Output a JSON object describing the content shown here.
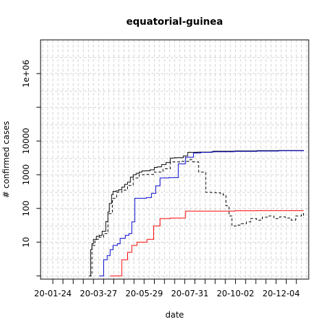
{
  "chart_data": {
    "type": "line",
    "title": "equatorial-guinea",
    "xlabel": "date",
    "ylabel": "# confirmed cases",
    "y_scale": "log",
    "ylim": [
      0.8,
      10000000
    ],
    "xlim": [
      "2020-01-07",
      "2021-01-11"
    ],
    "grid": true,
    "x_ticks": [
      {
        "date": "2020-01-24",
        "label": "20-01-24"
      },
      {
        "date": "2020-03-27",
        "label": "20-03-27"
      },
      {
        "date": "2020-05-29",
        "label": "20-05-29"
      },
      {
        "date": "2020-07-31",
        "label": "20-07-31"
      },
      {
        "date": "2020-10-02",
        "label": "20-10-02"
      },
      {
        "date": "2020-12-04",
        "label": "20-12-04"
      }
    ],
    "y_ticks": [
      {
        "value": 10,
        "label": "10"
      },
      {
        "value": 100,
        "label": "100"
      },
      {
        "value": 1000,
        "label": "1000"
      },
      {
        "value": 10000,
        "label": "10000"
      },
      {
        "value": 1000000,
        "label": "1e+06"
      }
    ],
    "series": [
      {
        "color": "#000000",
        "dash": "solid",
        "x": [
          "2020-03-14",
          "2020-03-16",
          "2020-03-18",
          "2020-03-20",
          "2020-03-24",
          "2020-03-28",
          "2020-04-01",
          "2020-04-06",
          "2020-04-09",
          "2020-04-11",
          "2020-04-14",
          "2020-04-16",
          "2020-04-20",
          "2020-04-24",
          "2020-04-28",
          "2020-05-02",
          "2020-05-06",
          "2020-05-10",
          "2020-05-14",
          "2020-05-18",
          "2020-05-22",
          "2020-05-26",
          "2020-06-01",
          "2020-06-06",
          "2020-06-12",
          "2020-06-16",
          "2020-06-22",
          "2020-06-28",
          "2020-07-04",
          "2020-07-10",
          "2020-07-16",
          "2020-07-22",
          "2020-07-28",
          "2020-08-10",
          "2020-09-01",
          "2020-10-01",
          "2020-11-01",
          "2020-12-01",
          "2021-01-04"
        ],
        "y": [
          1,
          6,
          9,
          12,
          15,
          16,
          21,
          41,
          79,
          140,
          258,
          320,
          330,
          360,
          430,
          520,
          600,
          850,
          1000,
          1100,
          1200,
          1300,
          1310,
          1400,
          1650,
          1700,
          2000,
          2300,
          3100,
          3200,
          3200,
          3600,
          4600,
          4700,
          4960,
          5080,
          5180,
          5230,
          5320
        ]
      },
      {
        "color": "#0000cc",
        "dash": "solid",
        "x": [
          "2020-03-28",
          "2020-04-03",
          "2020-04-08",
          "2020-04-12",
          "2020-04-16",
          "2020-04-22",
          "2020-04-26",
          "2020-05-03",
          "2020-05-08",
          "2020-05-12",
          "2020-05-16",
          "2020-06-01",
          "2020-06-08",
          "2020-06-14",
          "2020-06-20",
          "2020-07-02",
          "2020-07-15",
          "2020-07-25",
          "2020-08-05",
          "2020-08-15",
          "2020-08-30",
          "2020-09-30",
          "2020-11-01",
          "2020-12-01",
          "2021-01-04"
        ],
        "y": [
          1,
          3,
          4,
          6,
          8,
          9,
          13,
          16,
          18,
          40,
          200,
          210,
          280,
          470,
          800,
          820,
          2100,
          3300,
          4400,
          4600,
          4800,
          4950,
          5050,
          5150,
          5250
        ]
      },
      {
        "color": "#ff0000",
        "dash": "solid",
        "x": [
          "2020-04-12",
          "2020-04-20",
          "2020-04-28",
          "2020-05-06",
          "2020-05-12",
          "2020-05-19",
          "2020-06-02",
          "2020-06-11",
          "2020-06-20",
          "2020-07-04",
          "2020-07-25",
          "2020-09-01",
          "2020-10-01",
          "2020-11-01",
          "2020-12-01",
          "2021-01-04"
        ],
        "y": [
          1,
          1,
          3,
          5,
          8,
          10,
          12,
          30,
          50,
          52,
          83,
          83,
          85,
          86,
          86,
          86
        ]
      },
      {
        "color": "#000000",
        "dash": "dashed",
        "x": [
          "2020-03-14",
          "2020-03-18",
          "2020-03-22",
          "2020-03-28",
          "2020-04-03",
          "2020-04-09",
          "2020-04-15",
          "2020-04-21",
          "2020-04-28",
          "2020-05-06",
          "2020-05-14",
          "2020-05-22",
          "2020-06-01",
          "2020-06-12",
          "2020-06-24",
          "2020-07-04",
          "2020-07-20",
          "2020-07-30",
          "2020-08-04",
          "2020-08-12",
          "2020-08-22",
          "2020-08-30",
          "2020-09-05",
          "2020-09-11",
          "2020-09-15",
          "2020-09-19",
          "2020-09-23",
          "2020-09-27",
          "2020-10-03",
          "2020-10-09",
          "2020-10-17",
          "2020-10-23",
          "2020-10-31",
          "2020-11-08",
          "2020-11-16",
          "2020-11-24",
          "2020-12-02",
          "2020-12-10",
          "2020-12-18",
          "2020-12-24",
          "2021-01-01",
          "2021-01-04"
        ],
        "y": [
          1,
          8,
          12,
          14,
          18,
          70,
          200,
          300,
          350,
          480,
          800,
          1000,
          1020,
          1200,
          1500,
          2400,
          2500,
          2800,
          2400,
          1200,
          300,
          295,
          290,
          280,
          250,
          120,
          60,
          30,
          32,
          35,
          40,
          50,
          45,
          55,
          60,
          50,
          56,
          52,
          45,
          60,
          70,
          52
        ]
      }
    ]
  }
}
